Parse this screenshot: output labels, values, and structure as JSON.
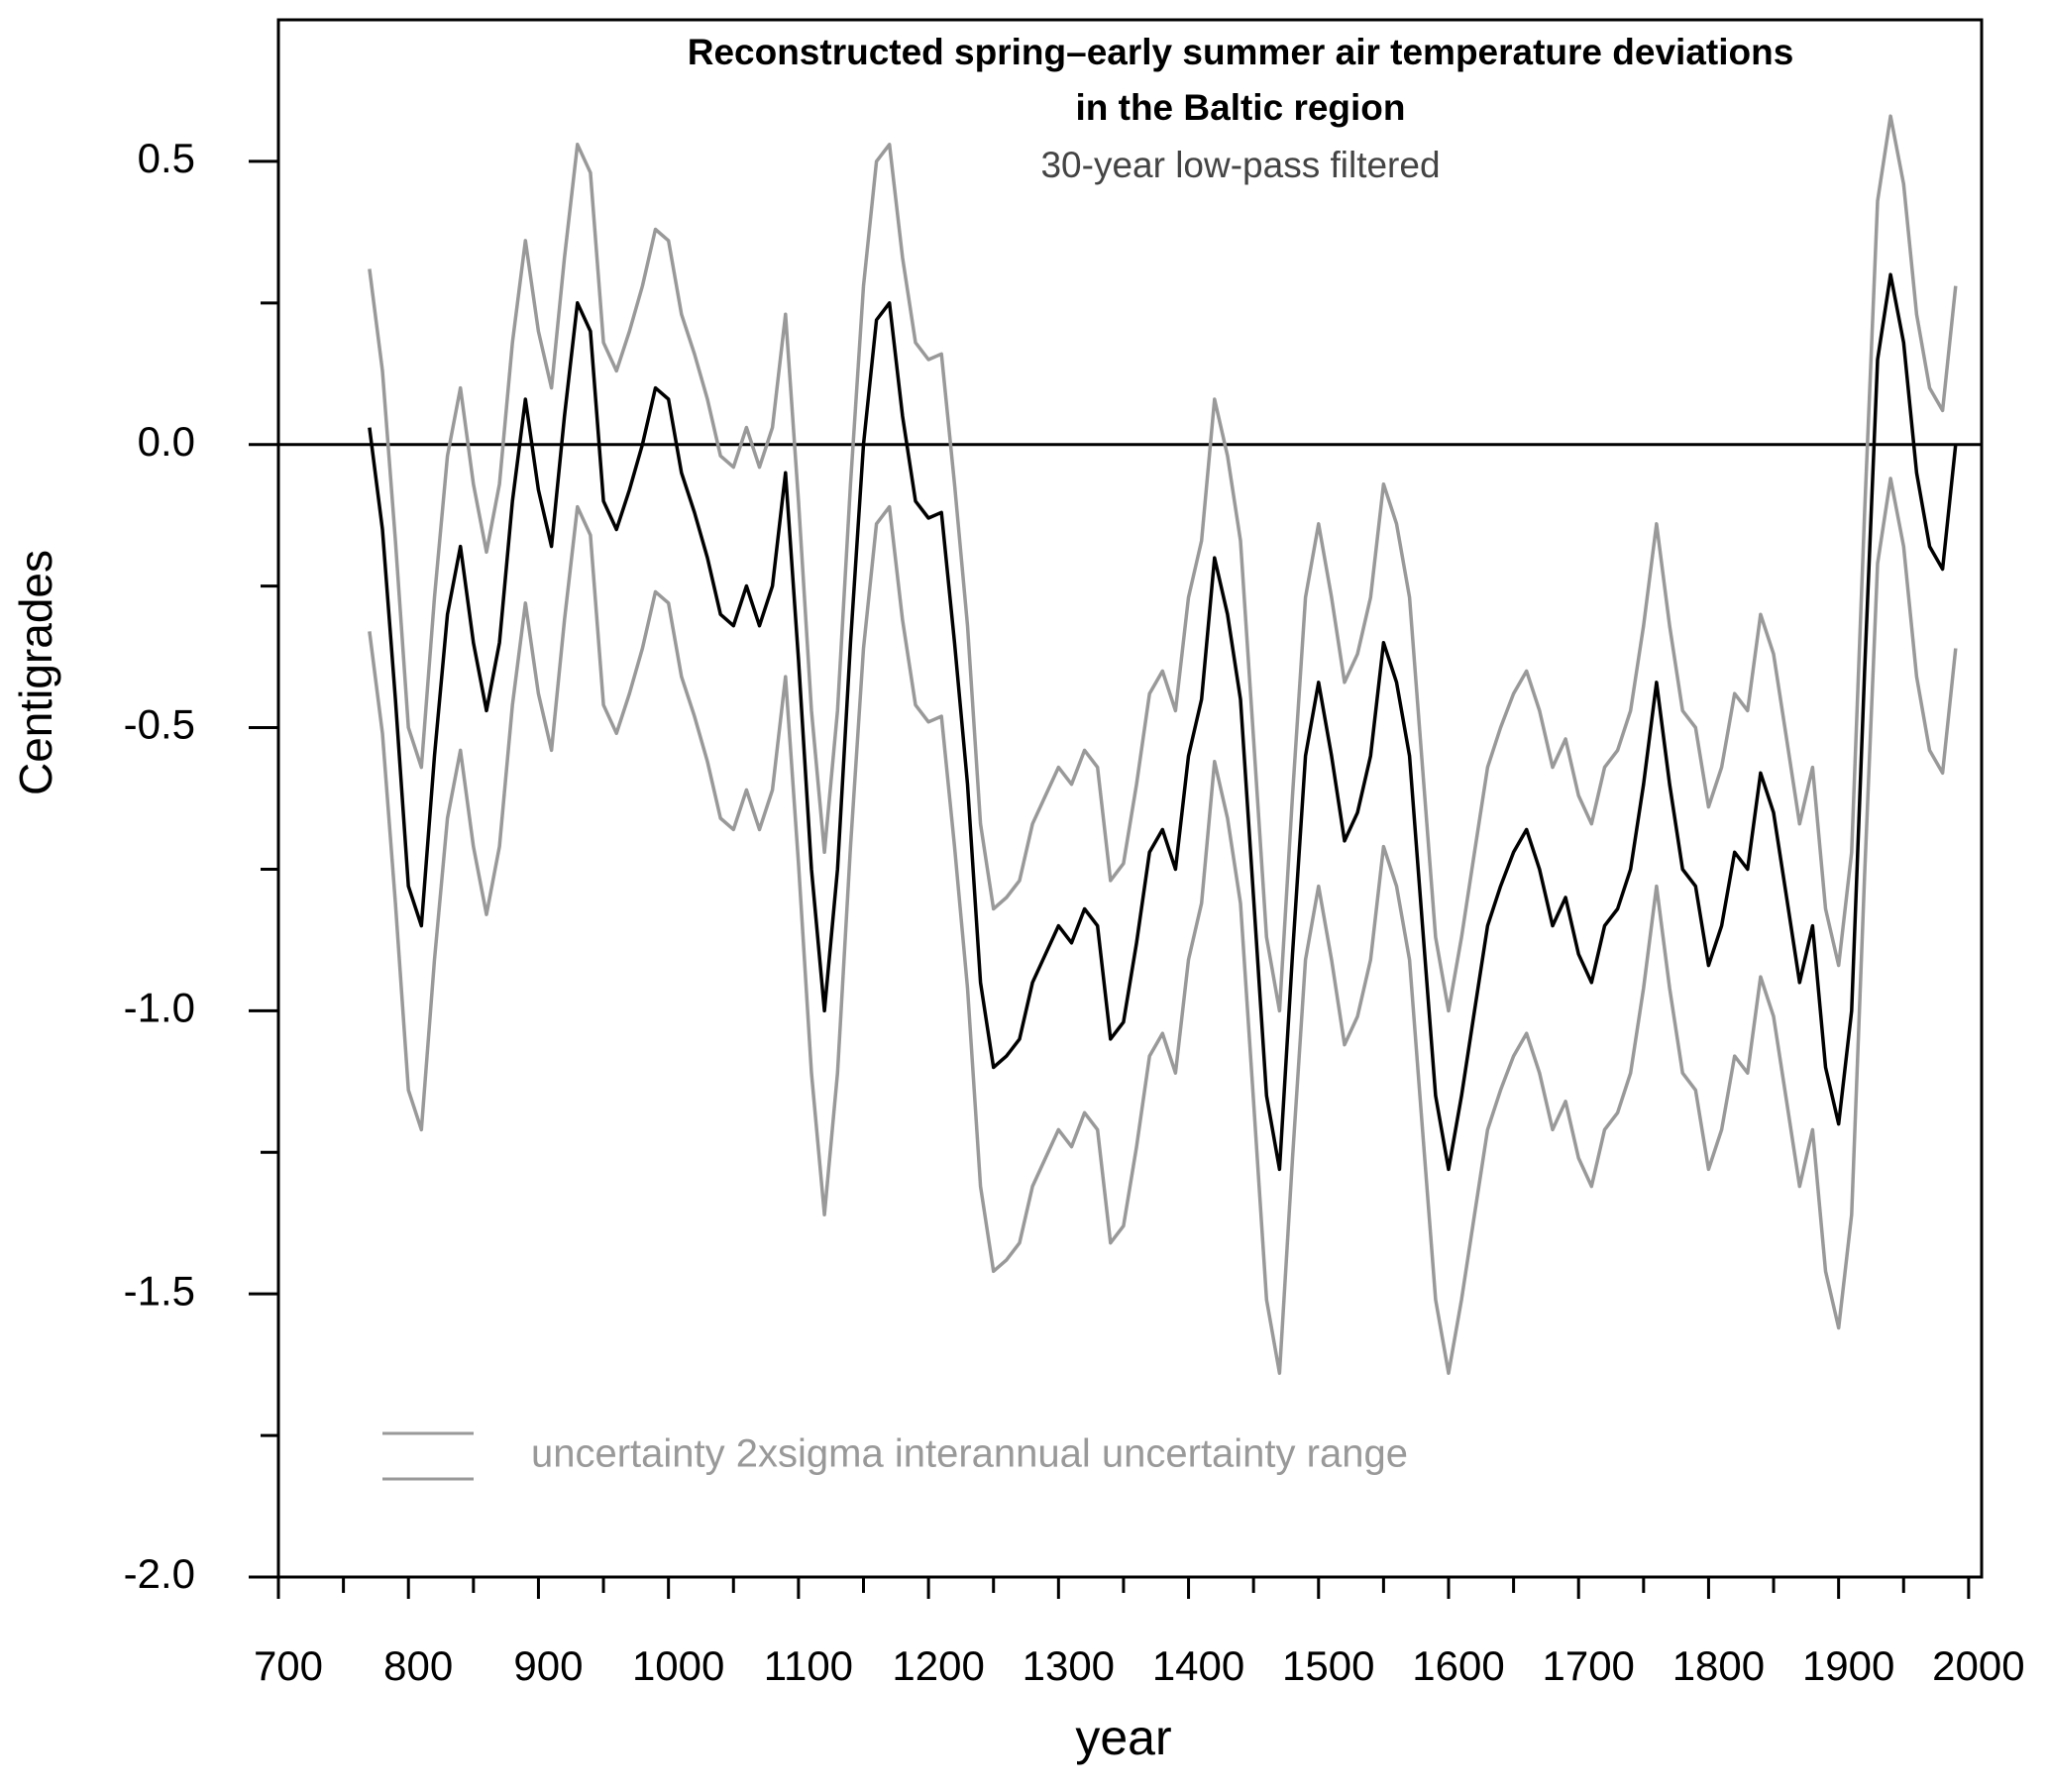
{
  "chart_data": {
    "type": "line",
    "title": [
      "Reconstructed spring–early summer air temperature deviations",
      "in the Baltic region"
    ],
    "subtitle": "30-year low-pass filtered",
    "xlabel": "year",
    "ylabel": "Centigrades",
    "legend_label": "uncertainty 2xsigma interannual uncertainty range",
    "xlim": [
      700,
      2010
    ],
    "ylim": [
      -2,
      0.75
    ],
    "xticks": [
      700,
      800,
      900,
      1000,
      1100,
      1200,
      1300,
      1400,
      1500,
      1600,
      1700,
      1800,
      1900,
      2000
    ],
    "xminorticks": [
      750,
      850,
      950,
      1050,
      1150,
      1250,
      1350,
      1450,
      1550,
      1650,
      1750,
      1850,
      1950
    ],
    "yticks": [
      {
        "value": -2,
        "label": "-2.0"
      },
      -1.5,
      {
        "value": -1,
        "label": "-1.0"
      },
      -0.5,
      {
        "value": 0,
        "label": "0.0"
      },
      0.5
    ],
    "yminorticks": [
      -1.75,
      -1.25,
      -0.75,
      -0.25,
      0.25
    ],
    "reference_line": 0,
    "x": [
      770,
      780,
      790,
      800,
      810,
      820,
      830,
      840,
      850,
      860,
      870,
      880,
      890,
      900,
      910,
      920,
      930,
      940,
      950,
      960,
      970,
      980,
      990,
      1000,
      1010,
      1020,
      1030,
      1040,
      1050,
      1060,
      1070,
      1080,
      1090,
      1100,
      1110,
      1120,
      1130,
      1140,
      1150,
      1160,
      1170,
      1180,
      1190,
      1200,
      1210,
      1220,
      1230,
      1240,
      1250,
      1260,
      1270,
      1280,
      1290,
      1300,
      1310,
      1320,
      1330,
      1340,
      1350,
      1360,
      1370,
      1380,
      1390,
      1400,
      1410,
      1420,
      1430,
      1440,
      1450,
      1460,
      1470,
      1480,
      1490,
      1500,
      1510,
      1520,
      1530,
      1540,
      1550,
      1560,
      1570,
      1580,
      1590,
      1600,
      1610,
      1620,
      1630,
      1640,
      1650,
      1660,
      1670,
      1680,
      1690,
      1700,
      1710,
      1720,
      1730,
      1740,
      1750,
      1760,
      1770,
      1780,
      1790,
      1800,
      1810,
      1820,
      1830,
      1840,
      1850,
      1860,
      1870,
      1880,
      1890,
      1900,
      1910,
      1920,
      1930,
      1940,
      1950,
      1960,
      1970,
      1980,
      1990
    ],
    "series": [
      {
        "color": "#999999",
        "values": [
          0.31,
          0.13,
          -0.17,
          -0.5,
          -0.57,
          -0.27,
          -0.02,
          0.1,
          -0.07,
          -0.19,
          -0.07,
          0.18,
          0.36,
          0.2,
          0.1,
          0.33,
          0.53,
          0.48,
          0.18,
          0.13,
          0.2,
          0.28,
          0.38,
          0.36,
          0.23,
          0.16,
          0.08,
          -0.02,
          -0.04,
          0.03,
          -0.04,
          0.03,
          0.23,
          -0.1,
          -0.47,
          -0.72,
          -0.47,
          -0.07,
          0.28,
          0.5,
          0.53,
          0.33,
          0.18,
          0.15,
          0.16,
          -0.07,
          -0.32,
          -0.67,
          -0.82,
          -0.8,
          -0.77,
          -0.67,
          -0.62,
          -0.57,
          -0.6,
          -0.54,
          -0.57,
          -0.77,
          -0.74,
          -0.6,
          -0.44,
          -0.4,
          -0.47,
          -0.27,
          -0.17,
          0.08,
          -0.02,
          -0.17,
          -0.52,
          -0.87,
          -1.0,
          -0.62,
          -0.27,
          -0.14,
          -0.27,
          -0.42,
          -0.37,
          -0.27,
          -0.07,
          -0.14,
          -0.27,
          -0.57,
          -0.87,
          -1.0,
          -0.87,
          -0.72,
          -0.57,
          -0.5,
          -0.44,
          -0.4,
          -0.47,
          -0.57,
          -0.52,
          -0.62,
          -0.67,
          -0.57,
          -0.54,
          -0.47,
          -0.32,
          -0.14,
          -0.32,
          -0.47,
          -0.5,
          -0.64,
          -0.57,
          -0.44,
          -0.47,
          -0.3,
          -0.37,
          -0.52,
          -0.67,
          -0.57,
          -0.82,
          -0.92,
          -0.72,
          -0.12,
          0.43,
          0.58,
          0.46,
          0.23,
          0.1,
          0.06,
          0.28
        ]
      },
      {
        "color": "#999999",
        "values": [
          -0.33,
          -0.51,
          -0.81,
          -1.14,
          -1.21,
          -0.91,
          -0.66,
          -0.54,
          -0.71,
          -0.83,
          -0.71,
          -0.46,
          -0.28,
          -0.44,
          -0.54,
          -0.31,
          -0.11,
          -0.16,
          -0.46,
          -0.51,
          -0.44,
          -0.36,
          -0.26,
          -0.28,
          -0.41,
          -0.48,
          -0.56,
          -0.66,
          -0.68,
          -0.61,
          -0.68,
          -0.61,
          -0.41,
          -0.74,
          -1.11,
          -1.36,
          -1.11,
          -0.71,
          -0.36,
          -0.14,
          -0.11,
          -0.31,
          -0.46,
          -0.49,
          -0.48,
          -0.71,
          -0.96,
          -1.31,
          -1.46,
          -1.44,
          -1.41,
          -1.31,
          -1.26,
          -1.21,
          -1.24,
          -1.18,
          -1.21,
          -1.41,
          -1.38,
          -1.24,
          -1.08,
          -1.04,
          -1.11,
          -0.91,
          -0.81,
          -0.56,
          -0.66,
          -0.81,
          -1.16,
          -1.51,
          -1.64,
          -1.26,
          -0.91,
          -0.78,
          -0.91,
          -1.06,
          -1.01,
          -0.91,
          -0.71,
          -0.78,
          -0.91,
          -1.21,
          -1.51,
          -1.64,
          -1.51,
          -1.36,
          -1.21,
          -1.14,
          -1.08,
          -1.04,
          -1.11,
          -1.21,
          -1.16,
          -1.26,
          -1.31,
          -1.21,
          -1.18,
          -1.11,
          -0.96,
          -0.78,
          -0.96,
          -1.11,
          -1.14,
          -1.28,
          -1.21,
          -1.08,
          -1.11,
          -0.94,
          -1.01,
          -1.16,
          -1.31,
          -1.21,
          -1.46,
          -1.56,
          -1.36,
          -0.76,
          -0.21,
          -0.06,
          -0.18,
          -0.41,
          -0.54,
          -0.58,
          -0.36
        ]
      },
      {
        "color": "#000000",
        "values": [
          0.03,
          -0.15,
          -0.45,
          -0.78,
          -0.85,
          -0.55,
          -0.3,
          -0.18,
          -0.35,
          -0.47,
          -0.35,
          -0.1,
          0.08,
          -0.08,
          -0.18,
          0.05,
          0.25,
          0.2,
          -0.1,
          -0.15,
          -0.08,
          0.0,
          0.1,
          0.08,
          -0.05,
          -0.12,
          -0.2,
          -0.3,
          -0.32,
          -0.25,
          -0.32,
          -0.25,
          -0.05,
          -0.38,
          -0.75,
          -1.0,
          -0.75,
          -0.35,
          0.0,
          0.22,
          0.25,
          0.05,
          -0.1,
          -0.13,
          -0.12,
          -0.35,
          -0.6,
          -0.95,
          -1.1,
          -1.08,
          -1.05,
          -0.95,
          -0.9,
          -0.85,
          -0.88,
          -0.82,
          -0.85,
          -1.05,
          -1.02,
          -0.88,
          -0.72,
          -0.68,
          -0.75,
          -0.55,
          -0.45,
          -0.2,
          -0.3,
          -0.45,
          -0.8,
          -1.15,
          -1.28,
          -0.9,
          -0.55,
          -0.42,
          -0.55,
          -0.7,
          -0.65,
          -0.55,
          -0.35,
          -0.42,
          -0.55,
          -0.85,
          -1.15,
          -1.28,
          -1.15,
          -1.0,
          -0.85,
          -0.78,
          -0.72,
          -0.68,
          -0.75,
          -0.85,
          -0.8,
          -0.9,
          -0.95,
          -0.85,
          -0.82,
          -0.75,
          -0.6,
          -0.42,
          -0.6,
          -0.75,
          -0.78,
          -0.92,
          -0.85,
          -0.72,
          -0.75,
          -0.58,
          -0.65,
          -0.8,
          -0.95,
          -0.85,
          -1.1,
          -1.2,
          -1.0,
          -0.4,
          0.15,
          0.3,
          0.18,
          -0.05,
          -0.18,
          -0.22,
          0.0
        ]
      }
    ]
  }
}
